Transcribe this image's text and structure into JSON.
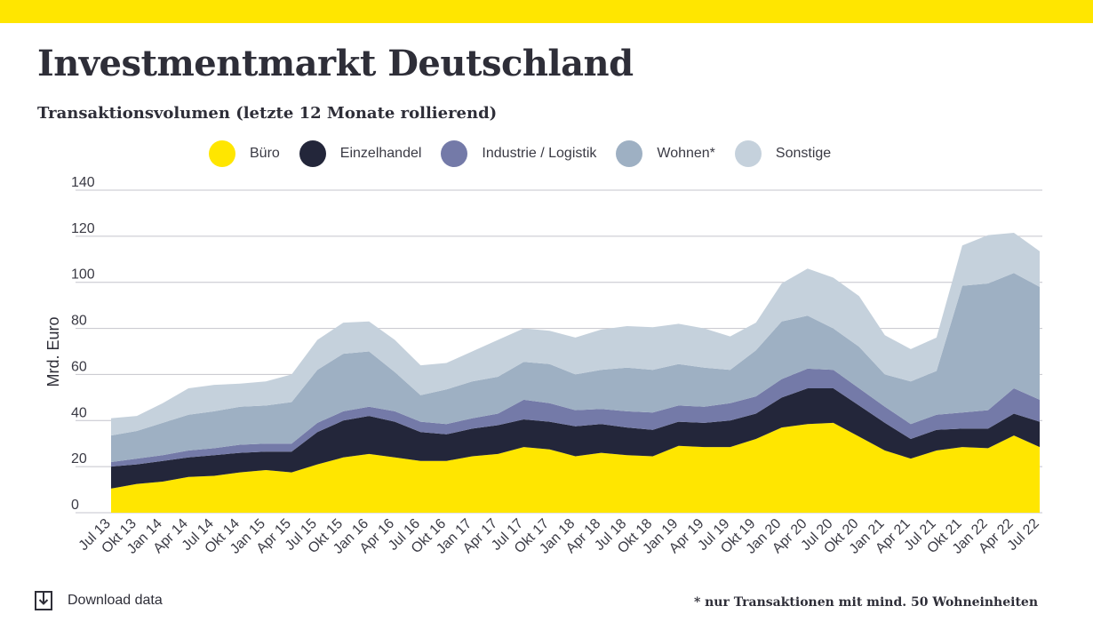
{
  "header": {
    "title": "Investmentmarkt Deutschland",
    "subtitle": "Transaktionsvolumen (letzte 12 Monate rollierend)"
  },
  "colors": {
    "top_bar": "#ffe600",
    "gridline": "#c4c4cc"
  },
  "legend": [
    {
      "label": "Büro",
      "color": "#ffe600"
    },
    {
      "label": "Einzelhandel",
      "color": "#23263a"
    },
    {
      "label": "Industrie / Logistik",
      "color": "#747aa8"
    },
    {
      "label": "Wohnen*",
      "color": "#9eb0c3"
    },
    {
      "label": "Sonstige",
      "color": "#c5d1dc"
    }
  ],
  "footer": {
    "download_label": "Download data",
    "download_icon": "download-icon",
    "footnote": "* nur Transaktionen mit mind. 50 Wohneinheiten"
  },
  "chart_data": {
    "type": "area",
    "stacked": true,
    "ylabel": "Mrd. Euro",
    "ylim": [
      0,
      140
    ],
    "yticks": [
      0,
      20,
      40,
      60,
      80,
      100,
      120,
      140
    ],
    "grid": true,
    "legend_position": "top",
    "x_tick_labels": [
      "Jul 13",
      "Okt 13",
      "Jan 14",
      "Apr 14",
      "Jul 14",
      "Okt 14",
      "Jan 15",
      "Apr 15",
      "Jul 15",
      "Okt 15",
      "Jan 16",
      "Apr 16",
      "Jul 16",
      "Okt 16",
      "Jan 17",
      "Apr 17",
      "Jul 17",
      "Okt 17",
      "Jan 18",
      "Apr 18",
      "Jul 18",
      "Okt 18",
      "Jan 19",
      "Apr 19",
      "Jul 19",
      "Okt 19",
      "Jan 20",
      "Apr 20",
      "Jul 20",
      "Okt 20",
      "Jan 21",
      "Apr 21",
      "Jul 21",
      "Okt 21",
      "Jan 22",
      "Apr 22",
      "Jul 22"
    ],
    "series": [
      {
        "name": "Büro",
        "color": "#ffe600",
        "values": [
          10.5,
          12.5,
          13.5,
          15.5,
          16.0,
          17.5,
          18.5,
          17.5,
          21.0,
          24.0,
          25.5,
          24.0,
          22.5,
          22.5,
          24.5,
          25.5,
          28.5,
          27.5,
          24.5,
          26.0,
          25.0,
          24.5,
          29.0,
          28.5,
          28.5,
          32.0,
          37.0,
          38.5,
          39.0,
          33.0,
          27.0,
          23.5,
          27.0,
          28.5,
          28.0,
          33.5,
          28.5
        ]
      },
      {
        "name": "Einzelhandel",
        "color": "#23263a",
        "values": [
          9.5,
          8.5,
          9.0,
          8.5,
          9.0,
          8.5,
          8.0,
          9.0,
          14.0,
          16.0,
          16.5,
          15.5,
          12.5,
          11.5,
          12.0,
          12.5,
          12.0,
          12.0,
          13.0,
          12.5,
          12.0,
          11.5,
          10.5,
          10.5,
          11.5,
          11.0,
          13.0,
          15.5,
          15.0,
          13.5,
          12.0,
          8.5,
          9.0,
          8.0,
          8.5,
          9.5,
          11.0
        ]
      },
      {
        "name": "Industrie / Logistik",
        "color": "#747aa8",
        "values": [
          2.0,
          2.5,
          2.5,
          3.0,
          3.0,
          3.5,
          3.5,
          3.5,
          4.0,
          4.0,
          4.0,
          4.5,
          4.5,
          4.5,
          4.5,
          5.0,
          8.5,
          8.0,
          7.0,
          6.5,
          7.0,
          7.5,
          7.0,
          7.0,
          7.5,
          7.5,
          8.0,
          8.5,
          8.0,
          7.5,
          7.0,
          6.5,
          6.5,
          7.0,
          8.0,
          11.0,
          9.5
        ]
      },
      {
        "name": "Wohnen*",
        "color": "#9eb0c3",
        "values": [
          11.5,
          12.0,
          14.0,
          15.5,
          16.0,
          16.5,
          16.5,
          18.0,
          23.0,
          25.0,
          24.0,
          17.0,
          11.5,
          15.0,
          16.0,
          16.0,
          16.5,
          17.0,
          15.5,
          17.0,
          19.0,
          18.5,
          18.0,
          17.0,
          14.5,
          20.0,
          25.0,
          23.0,
          18.0,
          18.0,
          14.0,
          18.5,
          19.0,
          55.0,
          55.0,
          50.0,
          49.0
        ]
      },
      {
        "name": "Sonstige",
        "color": "#c5d1dc",
        "values": [
          7.5,
          6.5,
          8.5,
          11.5,
          11.5,
          10.0,
          10.5,
          12.0,
          13.0,
          13.5,
          13.0,
          14.0,
          13.0,
          11.5,
          13.0,
          16.0,
          14.5,
          14.5,
          16.0,
          17.5,
          18.0,
          18.5,
          17.5,
          17.0,
          14.5,
          12.0,
          16.5,
          20.5,
          22.0,
          22.0,
          17.0,
          14.0,
          14.5,
          17.5,
          21.0,
          17.5,
          15.5
        ]
      }
    ]
  }
}
